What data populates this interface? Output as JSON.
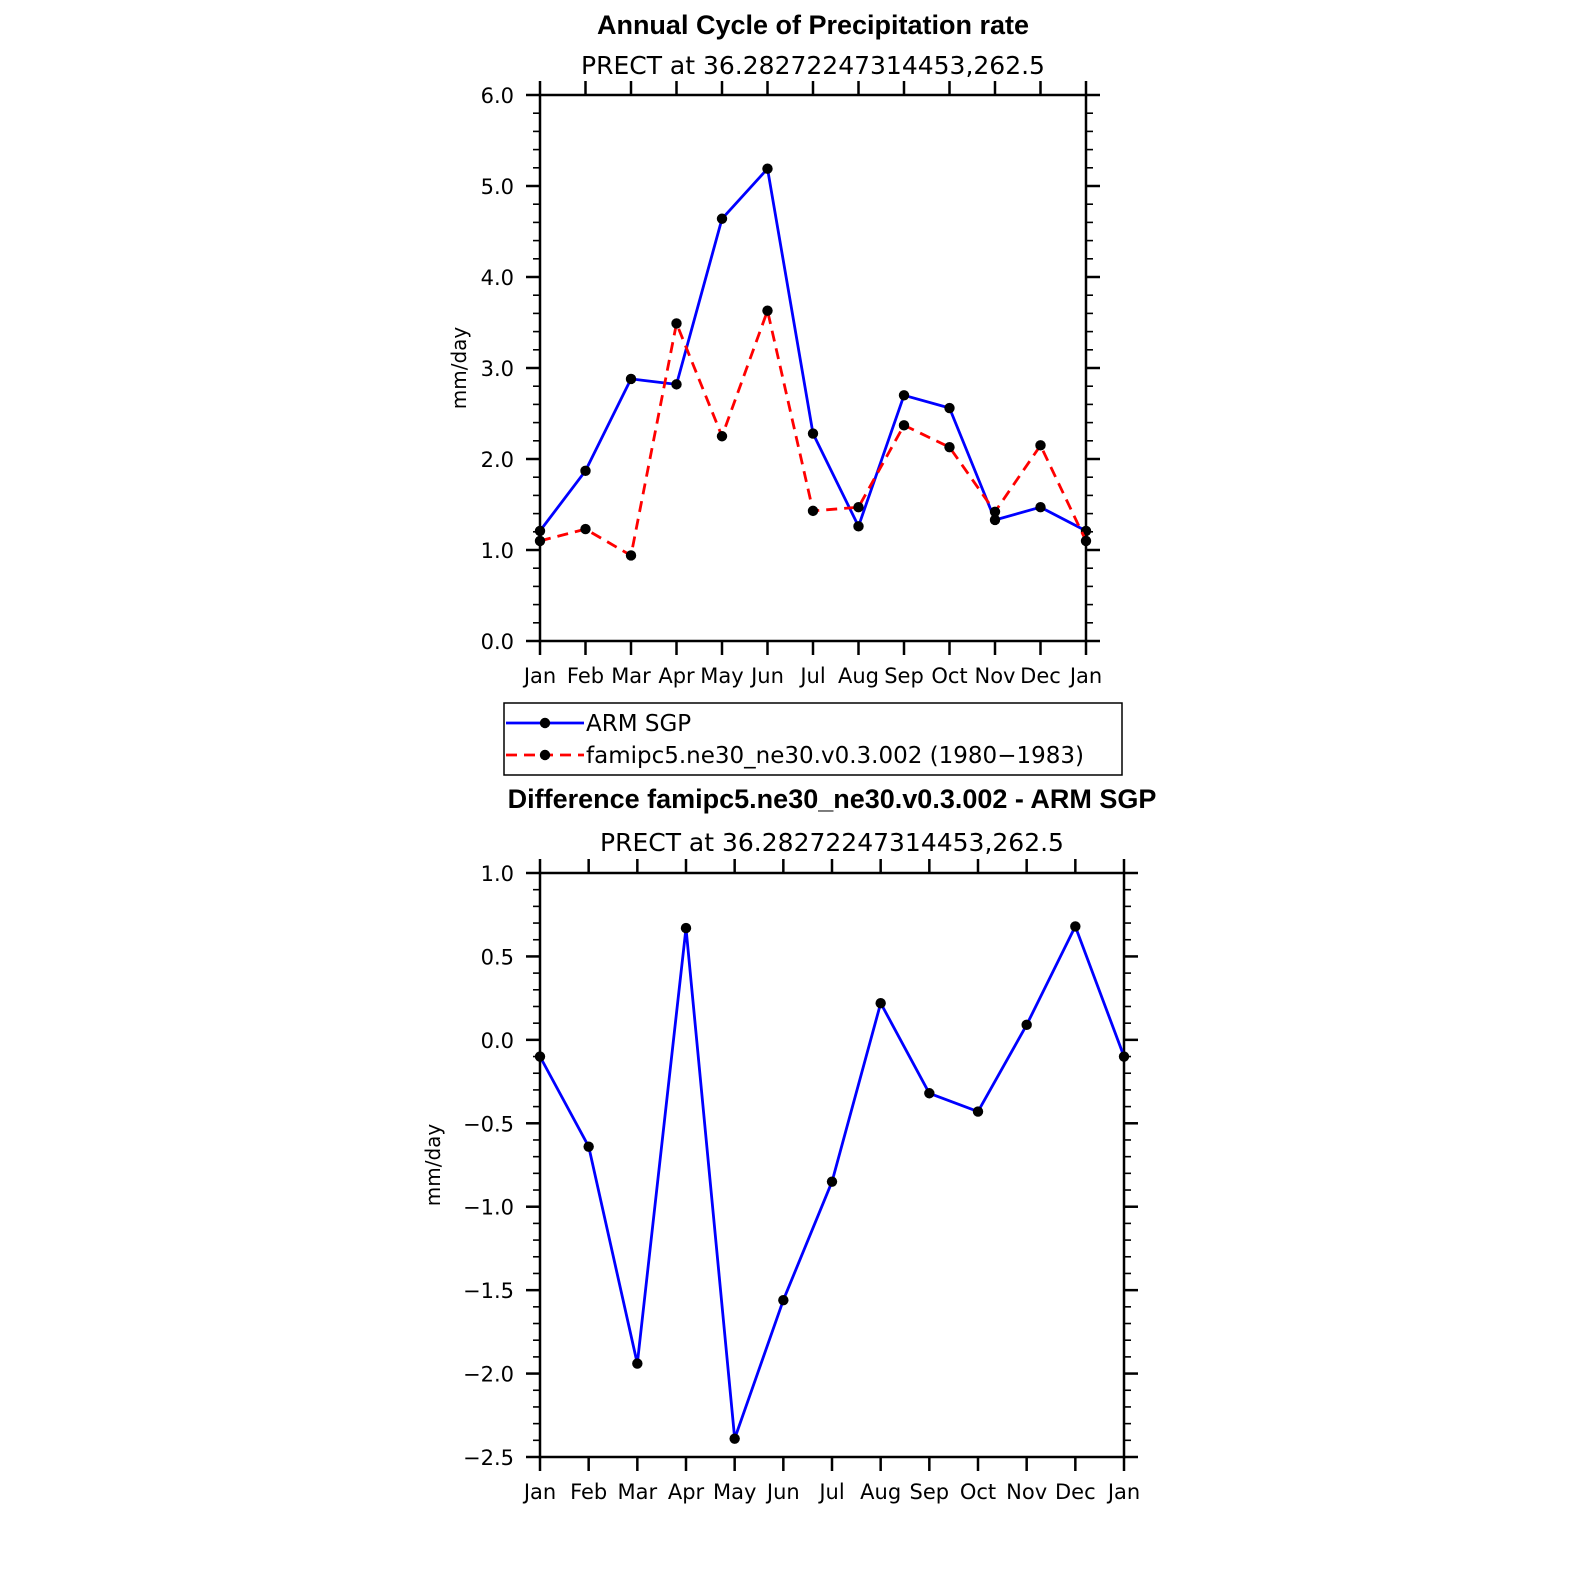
{
  "chart_data": [
    {
      "type": "line",
      "title": "Annual Cycle of Precipitation rate",
      "subtitle": "PRECT at 36.28272247314453,262.5",
      "xlabel": "",
      "ylabel": "mm/day",
      "categories": [
        "Jan",
        "Feb",
        "Mar",
        "Apr",
        "May",
        "Jun",
        "Jul",
        "Aug",
        "Sep",
        "Oct",
        "Nov",
        "Dec",
        "Jan"
      ],
      "ylim": [
        0.0,
        6.0
      ],
      "yticks": [
        "0.0",
        "1.0",
        "2.0",
        "3.0",
        "4.0",
        "5.0",
        "6.0"
      ],
      "grid": false,
      "legend_position": "below",
      "series": [
        {
          "name": "ARM SGP",
          "color": "#0000ff",
          "dash": "solid",
          "marker": "filled-circle",
          "values": [
            1.21,
            1.87,
            2.88,
            2.82,
            4.64,
            5.19,
            2.28,
            1.26,
            2.7,
            2.56,
            1.33,
            1.47,
            1.21
          ]
        },
        {
          "name": "famipc5.ne30_ne30.v0.3.002 (1980−1983)",
          "color": "#ff0000",
          "dash": "dashed",
          "marker": "filled-circle",
          "values": [
            1.1,
            1.23,
            0.94,
            3.49,
            2.25,
            3.63,
            1.43,
            1.47,
            2.37,
            2.13,
            1.42,
            2.15,
            1.1
          ]
        }
      ]
    },
    {
      "type": "line",
      "title": "Difference famipc5.ne30_ne30.v0.3.002 - ARM SGP",
      "subtitle": "PRECT at 36.28272247314453,262.5",
      "xlabel": "",
      "ylabel": "mm/day",
      "categories": [
        "Jan",
        "Feb",
        "Mar",
        "Apr",
        "May",
        "Jun",
        "Jul",
        "Aug",
        "Sep",
        "Oct",
        "Nov",
        "Dec",
        "Jan"
      ],
      "ylim": [
        -2.5,
        1.0
      ],
      "yticks": [
        "−2.5",
        "−2.0",
        "−1.5",
        "−1.0",
        "−0.5",
        "0.0",
        "0.5",
        "1.0"
      ],
      "grid": false,
      "series": [
        {
          "color": "#0000ff",
          "dash": "solid",
          "marker": "filled-circle",
          "values": [
            -0.1,
            -0.64,
            -1.94,
            0.67,
            -2.39,
            -1.56,
            -0.85,
            0.22,
            -0.32,
            -0.43,
            0.09,
            0.68,
            -0.1
          ]
        }
      ]
    }
  ]
}
